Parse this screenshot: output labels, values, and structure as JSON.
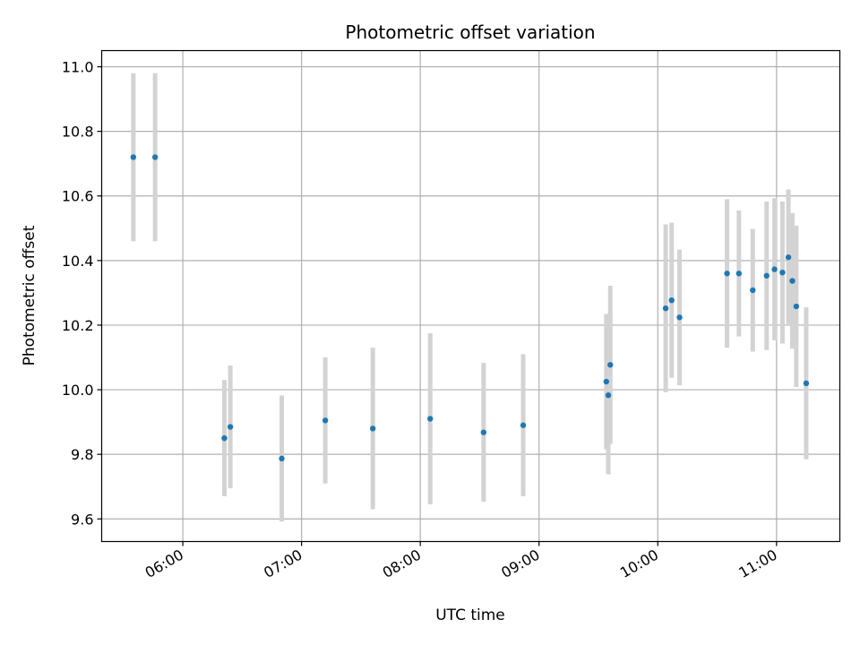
{
  "chart_data": {
    "type": "scatter",
    "title": "Photometric offset variation",
    "xlabel": "UTC time",
    "ylabel": "Photometric offset",
    "x_ticks": [
      "06:00",
      "07:00",
      "08:00",
      "09:00",
      "10:00",
      "11:00"
    ],
    "y_ticks": [
      "9.6",
      "9.8",
      "10.0",
      "10.2",
      "10.4",
      "10.6",
      "10.8",
      "11.0"
    ],
    "xlim": [
      "05:19",
      "11:32"
    ],
    "ylim": [
      9.53,
      11.05
    ],
    "grid": true,
    "colors": {
      "point": "#1f77b4",
      "errorbar": "#d3d3d3",
      "grid": "#b0b0b0"
    },
    "points": [
      {
        "x": "05:35",
        "y": 10.72,
        "err": 0.26
      },
      {
        "x": "05:46",
        "y": 10.72,
        "err": 0.26
      },
      {
        "x": "06:21",
        "y": 9.85,
        "err": 0.18
      },
      {
        "x": "06:24",
        "y": 9.885,
        "err": 0.19
      },
      {
        "x": "06:50",
        "y": 9.787,
        "err": 0.195
      },
      {
        "x": "07:12",
        "y": 9.905,
        "err": 0.195
      },
      {
        "x": "07:36",
        "y": 9.88,
        "err": 0.25
      },
      {
        "x": "08:05",
        "y": 9.91,
        "err": 0.265
      },
      {
        "x": "08:32",
        "y": 9.868,
        "err": 0.215
      },
      {
        "x": "08:52",
        "y": 9.89,
        "err": 0.22
      },
      {
        "x": "09:34",
        "y": 10.025,
        "err": 0.21
      },
      {
        "x": "09:35",
        "y": 9.983,
        "err": 0.245
      },
      {
        "x": "09:36",
        "y": 10.077,
        "err": 0.245
      },
      {
        "x": "10:04",
        "y": 10.252,
        "err": 0.26
      },
      {
        "x": "10:07",
        "y": 10.277,
        "err": 0.24
      },
      {
        "x": "10:11",
        "y": 10.224,
        "err": 0.21
      },
      {
        "x": "10:35",
        "y": 10.36,
        "err": 0.23
      },
      {
        "x": "10:41",
        "y": 10.36,
        "err": 0.195
      },
      {
        "x": "10:48",
        "y": 10.308,
        "err": 0.19
      },
      {
        "x": "10:55",
        "y": 10.353,
        "err": 0.23
      },
      {
        "x": "10:59",
        "y": 10.373,
        "err": 0.22
      },
      {
        "x": "11:03",
        "y": 10.363,
        "err": 0.22
      },
      {
        "x": "11:06",
        "y": 10.41,
        "err": 0.21
      },
      {
        "x": "11:08",
        "y": 10.337,
        "err": 0.21
      },
      {
        "x": "11:10",
        "y": 10.258,
        "err": 0.25
      },
      {
        "x": "11:15",
        "y": 10.02,
        "err": 0.235
      }
    ]
  }
}
